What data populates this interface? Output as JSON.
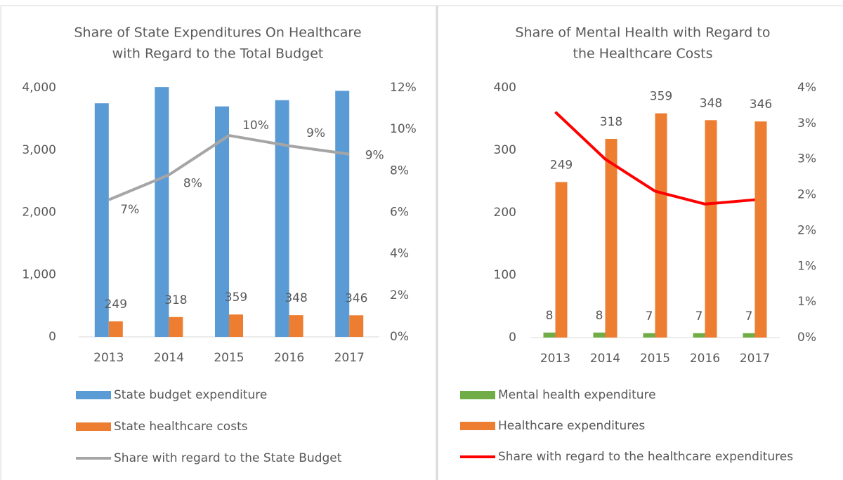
{
  "chart_data": [
    {
      "type": "bar",
      "title": [
        "Share of State Expenditures On Healthcare",
        "with Regard to the Total Budget"
      ],
      "categories": [
        "2013",
        "2014",
        "2015",
        "2016",
        "2017"
      ],
      "series": [
        {
          "name": "State budget expenditure",
          "color": "#5b9bd5",
          "values": [
            3750,
            4010,
            3700,
            3800,
            3950
          ],
          "data_labels": false
        },
        {
          "name": "State healthcare costs",
          "color": "#ed7d31",
          "values": [
            249,
            318,
            359,
            348,
            346
          ],
          "data_labels": true
        },
        {
          "name": "Share with regard to the State Budget",
          "color": "#a5a5a5",
          "type": "line",
          "axis": "y2",
          "values": [
            6.6,
            7.8,
            9.7,
            9.2,
            8.8
          ],
          "value_labels": [
            "7%",
            "8%",
            "10%",
            "9%",
            "9%"
          ],
          "data_labels": true
        }
      ],
      "ylim": [
        0,
        4000
      ],
      "yticks": [
        0,
        {
          "value": 1000,
          "label": "1,000"
        },
        {
          "value": 2000,
          "label": "2,000"
        },
        {
          "value": 3000,
          "label": "3,000"
        },
        {
          "value": 4000,
          "label": "4,000"
        }
      ],
      "y2lim": [
        0,
        12
      ],
      "y2ticks": [
        {
          "value": 0,
          "label": "0%"
        },
        {
          "value": 2,
          "label": "2%"
        },
        {
          "value": 4,
          "label": "4%"
        },
        {
          "value": 6,
          "label": "6%"
        },
        {
          "value": 8,
          "label": "8%"
        },
        {
          "value": 10,
          "label": "10%"
        },
        {
          "value": 12,
          "label": "12%"
        }
      ],
      "legend": "bottom",
      "grid": false
    },
    {
      "type": "bar",
      "title": [
        "Share of Mental Health with Regard to",
        "the Healthcare Costs"
      ],
      "categories": [
        "2013",
        "2014",
        "2015",
        "2016",
        "2017"
      ],
      "series": [
        {
          "name": "Mental health expenditure",
          "color": "#70ad47",
          "values": [
            8,
            8,
            7,
            7,
            7
          ],
          "data_labels": true
        },
        {
          "name": "Healthcare expenditures",
          "color": "#ed7d31",
          "values": [
            249,
            318,
            359,
            348,
            346
          ],
          "data_labels": true
        },
        {
          "name": "Share with regard to the healthcare expenditures",
          "color": "#ff0000",
          "type": "line",
          "axis": "y2",
          "values": [
            3.16,
            2.5,
            2.05,
            1.87,
            1.93
          ],
          "data_labels": false
        }
      ],
      "ylim": [
        0,
        400
      ],
      "yticks": [
        0,
        100,
        200,
        300,
        400
      ],
      "y2lim": [
        0,
        3.5
      ],
      "y2ticks": [
        {
          "value": 0,
          "label": "0%"
        },
        {
          "value": 0.5,
          "label": "1%"
        },
        {
          "value": 1,
          "label": "1%"
        },
        {
          "value": 1.5,
          "label": "2%"
        },
        {
          "value": 2,
          "label": "2%"
        },
        {
          "value": 2.5,
          "label": "3%"
        },
        {
          "value": 3,
          "label": "3%"
        },
        {
          "value": 3.5,
          "label": "4%"
        }
      ],
      "legend": "bottom",
      "grid": false
    }
  ]
}
